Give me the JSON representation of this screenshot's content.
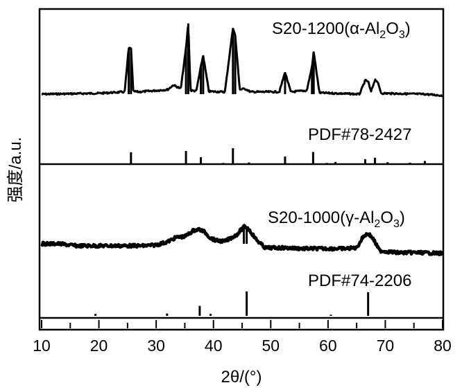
{
  "chart_data": {
    "type": "line",
    "xlabel": "2θ/(°)",
    "ylabel": "强度/a.u.",
    "xlim": [
      10,
      80
    ],
    "xticks": [
      10,
      20,
      30,
      40,
      50,
      60,
      70,
      80
    ],
    "xtick_labels": [
      "10",
      "20",
      "30",
      "40",
      "50",
      "60",
      "70",
      "80"
    ],
    "grid": false,
    "legend": "none",
    "series": [
      {
        "name": "S20-1200(α-Al2O3)",
        "label_main": "S20-1200(α-Al",
        "label_sub1": "2",
        "label_mid": "O",
        "label_sub2": "3",
        "label_end": ")",
        "kind": "pattern",
        "x": [
          10,
          20,
          24.5,
          25.2,
          25.6,
          26.0,
          27,
          32,
          33.0,
          34.3,
          35.2,
          35.6,
          36.0,
          37.0,
          37.8,
          38.2,
          39.2,
          42.0,
          43.4,
          43.8,
          44.6,
          45.5,
          46.5,
          51.5,
          52.5,
          53.5,
          56.3,
          57.2,
          57.5,
          58.5,
          61.0,
          65.5,
          66.5,
          67.0,
          67.5,
          68.2,
          68.6,
          69.3,
          77.0,
          80
        ],
        "values": [
          0.0,
          0.02,
          0.05,
          1.0,
          1.02,
          0.06,
          0.05,
          0.1,
          0.2,
          0.12,
          1.0,
          1.55,
          0.08,
          0.07,
          0.6,
          0.85,
          0.06,
          0.05,
          1.45,
          1.28,
          0.1,
          0.12,
          0.05,
          0.05,
          0.48,
          0.05,
          0.08,
          0.6,
          0.93,
          0.03,
          0.02,
          0.0,
          0.3,
          0.28,
          0.05,
          0.32,
          0.28,
          0.02,
          0.0,
          -0.03
        ]
      },
      {
        "name": "PDF#78-2427",
        "kind": "reference",
        "x": [
          25.6,
          35.2,
          37.8,
          41.7,
          43.4,
          46.2,
          52.5,
          57.4,
          59.8,
          61.3,
          66.5,
          68.2,
          70.4,
          74.3,
          76.9
        ],
        "values": [
          0.45,
          0.5,
          0.25,
          0.02,
          0.61,
          0.04,
          0.28,
          0.46,
          0.02,
          0.06,
          0.17,
          0.23,
          0.05,
          0.03,
          0.1
        ]
      },
      {
        "name": "S20-1000(γ-Al2O3)",
        "label_main": "S20-1000(γ-Al",
        "label_sub1": "2",
        "label_mid": "O",
        "label_sub2": "3",
        "label_end": ")",
        "kind": "pattern",
        "x": [
          10,
          13,
          16,
          19,
          22,
          25,
          28,
          30,
          32,
          33.5,
          35,
          36.5,
          37.5,
          38.5,
          39.5,
          40.5,
          42,
          44,
          45.3,
          45.8,
          46.5,
          47.5,
          49,
          52,
          56,
          60,
          63,
          65,
          66.2,
          67.0,
          67.8,
          69,
          72,
          76,
          80
        ],
        "values": [
          0.0,
          0.0,
          -0.05,
          -0.05,
          -0.05,
          -0.05,
          -0.05,
          -0.03,
          0.05,
          0.16,
          0.18,
          0.33,
          0.36,
          0.29,
          0.14,
          0.08,
          0.06,
          0.22,
          0.42,
          0.42,
          0.3,
          0.1,
          -0.1,
          -0.1,
          -0.12,
          -0.12,
          -0.12,
          -0.1,
          0.19,
          0.26,
          0.14,
          -0.17,
          -0.22,
          -0.22,
          -0.24
        ]
      },
      {
        "name": "PDF#74-2206",
        "kind": "reference",
        "x": [
          19.4,
          31.9,
          37.6,
          39.5,
          45.8,
          60.5,
          67.0
        ],
        "values": [
          0.05,
          0.06,
          0.26,
          0.05,
          0.64,
          0.03,
          0.62
        ]
      }
    ]
  }
}
